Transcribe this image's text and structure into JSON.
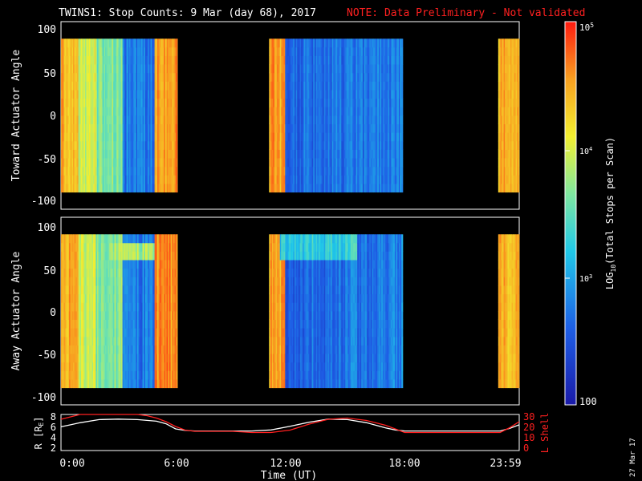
{
  "header": {
    "title": "TWINS1: Stop Counts:  9 Mar (day  68), 2017",
    "note": "NOTE: Data Preliminary - Not validated"
  },
  "side_date": "27 Mar 17",
  "colors": {
    "background": "#000000",
    "text": "#ffffff",
    "note": "#ff2020",
    "lshell": "#ff2020"
  },
  "chart_data": [
    {
      "type": "heatmap",
      "ylabel": "Toward Actuator Angle",
      "yticks": [
        "100",
        "50",
        "0",
        "-50",
        "-100"
      ],
      "ylim": [
        -110,
        110
      ],
      "x_range_hours": [
        0,
        24
      ],
      "data_blocks_hours": [
        [
          0,
          6.1
        ],
        [
          10.9,
          17.9
        ],
        [
          22.9,
          24
        ]
      ]
    },
    {
      "type": "heatmap",
      "ylabel": "Away Actuator Angle",
      "yticks": [
        "100",
        "50",
        "0",
        "-50",
        "-100"
      ],
      "ylim": [
        -110,
        110
      ],
      "x_range_hours": [
        0,
        24
      ],
      "data_blocks_hours": [
        [
          0,
          6.1
        ],
        [
          10.9,
          17.9
        ],
        [
          22.9,
          24
        ]
      ]
    },
    {
      "type": "line",
      "xlabel": "Time (UT)",
      "xticks": [
        "0:00",
        "6:00",
        "12:00",
        "18:00",
        "23:59"
      ],
      "ylabel_left": "R [R_E]",
      "ylabel_right": "L Shell",
      "yticks_left": [
        "8",
        "6",
        "4",
        "2"
      ],
      "yticks_right": [
        "30",
        "20",
        "10",
        "0"
      ],
      "ylim_left": [
        1,
        8
      ],
      "ylim_right": [
        0,
        30
      ],
      "series": [
        {
          "name": "R [R_E]",
          "color": "#ffffff",
          "x": [
            0,
            0.5,
            1,
            2,
            3,
            4,
            5,
            5.5,
            6,
            6.5,
            7,
            8,
            9,
            10,
            11,
            12,
            13,
            14,
            15,
            16,
            17,
            17.5,
            18,
            19,
            20,
            21,
            22,
            23,
            23.5,
            24
          ],
          "y": [
            5.6,
            6.0,
            6.4,
            7.0,
            7.1,
            7.0,
            6.7,
            6.2,
            5.2,
            4.9,
            4.8,
            4.8,
            4.8,
            4.8,
            5.0,
            5.7,
            6.5,
            7.1,
            7.0,
            6.4,
            5.4,
            5.0,
            4.8,
            4.8,
            4.8,
            4.8,
            4.8,
            4.8,
            5.3,
            6.0
          ]
        },
        {
          "name": "L Shell",
          "color": "#ff2020",
          "x": [
            0,
            0.5,
            1,
            4,
            4.5,
            5,
            5.5,
            6,
            6.5,
            7,
            8,
            9,
            10,
            11,
            12,
            13,
            14,
            15,
            16,
            17,
            17.5,
            18,
            19,
            20,
            21,
            22,
            23,
            23.5,
            24
          ],
          "y": [
            26,
            28,
            30,
            30,
            29,
            27,
            24,
            20,
            17,
            16,
            16,
            16,
            15,
            15,
            17,
            22,
            26,
            27,
            25,
            21,
            18,
            15,
            15,
            15,
            15,
            15,
            15,
            19,
            24
          ]
        }
      ]
    }
  ],
  "colorbar": {
    "label": "LOG10(Total Stops per Scan)",
    "ticks": [
      "10^5",
      "10^4",
      "10^3",
      "100"
    ],
    "range": [
      100,
      100000
    ]
  }
}
